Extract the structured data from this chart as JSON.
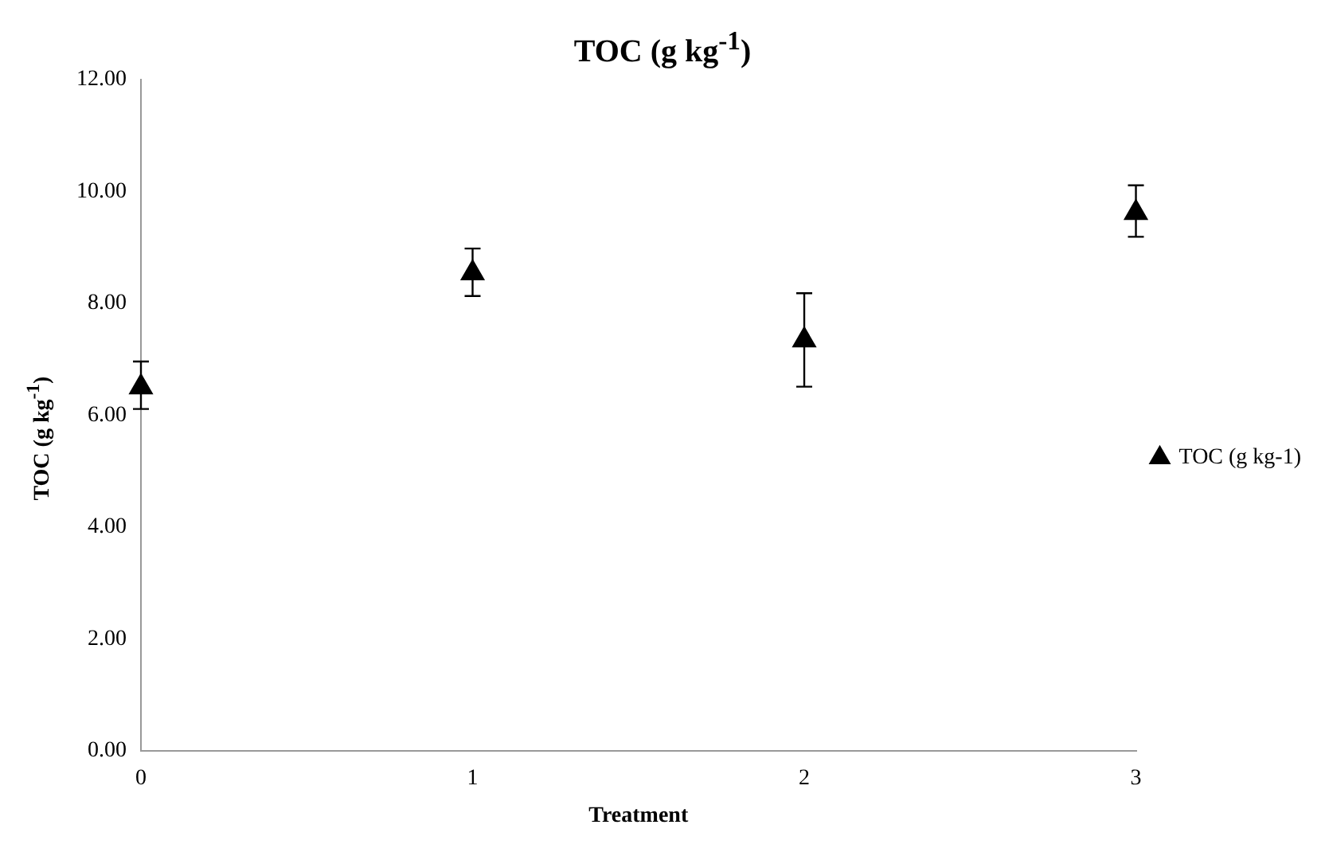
{
  "chart_data": {
    "type": "scatter",
    "title": "TOC (g kg$^{-1}$)",
    "xlabel": "Treatment",
    "ylabel": "TOC (g kg$^{-1}$)",
    "x": [
      0,
      1,
      2,
      3
    ],
    "series": [
      {
        "name": "TOC (g kg-1)",
        "color": "#000000",
        "values": [
          6.5,
          8.54,
          7.34,
          9.62
        ],
        "errors": [
          [
            6.11,
            6.96
          ],
          [
            8.13,
            8.98
          ],
          [
            6.51,
            8.18
          ],
          [
            9.19,
            10.11
          ]
        ]
      }
    ],
    "xlim": [
      0,
      3
    ],
    "xticks": [
      0,
      1,
      2,
      3
    ],
    "ylim": [
      0,
      12
    ],
    "yticks": [
      {
        "value": 0,
        "label": "0.00"
      },
      {
        "value": 2,
        "label": "2.00"
      },
      {
        "value": 4,
        "label": "4.00"
      },
      {
        "value": 6,
        "label": "6.00"
      },
      {
        "value": 8,
        "label": "8.00"
      },
      {
        "value": 10,
        "label": "10.00"
      },
      {
        "value": 12,
        "label": "12.00"
      }
    ],
    "grid": false,
    "legend": "right",
    "marker": "triangle"
  }
}
